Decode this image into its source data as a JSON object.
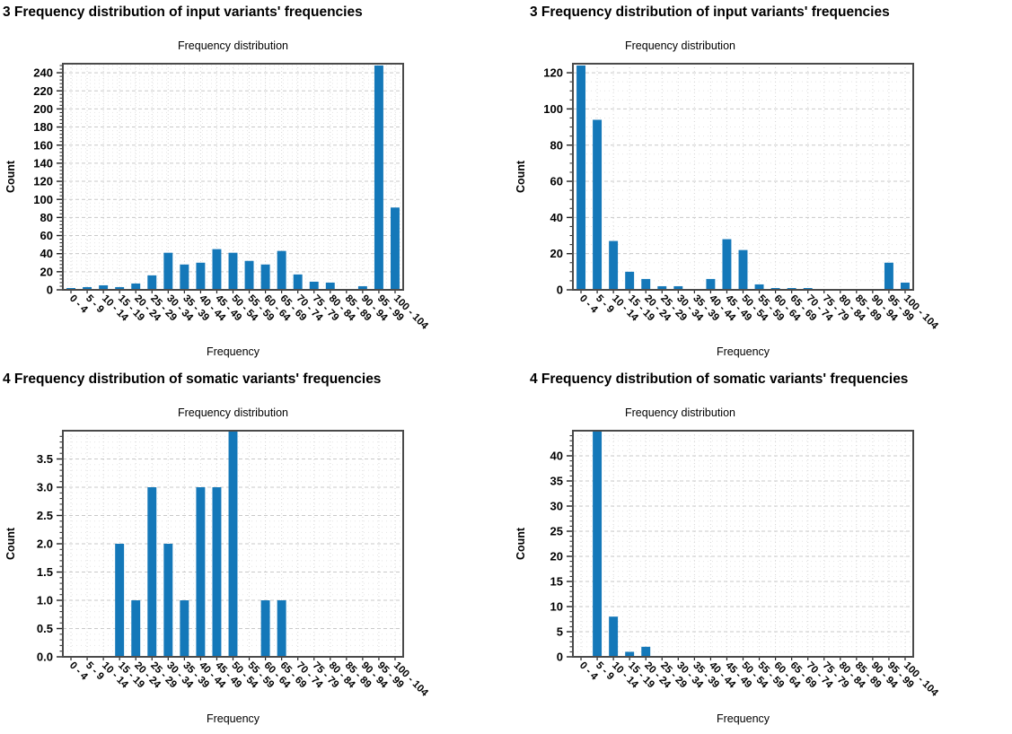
{
  "colors": {
    "bar": "#1478b9",
    "grid_major": "#c9c9c9",
    "grid_minor": "#e5e5e5",
    "grid_vertical": "#d6d6d6",
    "border": "#4a4a4a",
    "tick": "#222222",
    "text": "#000000"
  },
  "chart_data": [
    {
      "type": "bar",
      "heading": "3 Frequency distribution of input variants' frequencies",
      "title": "Frequency distribution",
      "xlabel": "Frequency",
      "ylabel": "Count",
      "legend": "none",
      "grid": "on",
      "categories": [
        "0 - 4",
        "5 - 9",
        "10 - 14",
        "15 - 19",
        "20 - 24",
        "25 - 29",
        "30 - 34",
        "35 - 39",
        "40 - 44",
        "45 - 49",
        "50 - 54",
        "55 - 59",
        "60 - 64",
        "65 - 69",
        "70 - 74",
        "75 - 79",
        "80 - 84",
        "85 - 89",
        "90 - 94",
        "95 - 99",
        "100 - 104"
      ],
      "values": [
        2,
        3,
        5,
        3,
        7,
        16,
        41,
        28,
        30,
        45,
        41,
        32,
        28,
        43,
        17,
        9,
        8,
        1,
        4,
        248,
        91
      ],
      "ylim": [
        0,
        250
      ],
      "y_major_step": 20,
      "y_minor_step": 4,
      "y_decimals": 0
    },
    {
      "type": "bar",
      "heading": "3 Frequency distribution of input variants' frequencies",
      "title": "Frequency distribution",
      "xlabel": "Frequency",
      "ylabel": "Count",
      "legend": "none",
      "grid": "on",
      "categories": [
        "0 - 4",
        "5 - 9",
        "10 - 14",
        "15 - 19",
        "20 - 24",
        "25 - 29",
        "30 - 34",
        "35 - 39",
        "40 - 44",
        "45 - 49",
        "50 - 54",
        "55 - 59",
        "60 - 64",
        "65 - 69",
        "70 - 74",
        "75 - 79",
        "80 - 84",
        "85 - 89",
        "90 - 94",
        "95 - 99",
        "100 - 104"
      ],
      "values": [
        124,
        94,
        27,
        10,
        6,
        2,
        2,
        0,
        6,
        28,
        22,
        3,
        1,
        1,
        1,
        0,
        0,
        0,
        0,
        15,
        4
      ],
      "ylim": [
        0,
        125
      ],
      "y_major_step": 20,
      "y_minor_step": 5,
      "y_decimals": 0
    },
    {
      "type": "bar",
      "heading": "4 Frequency distribution of somatic variants' frequencies",
      "title": "Frequency distribution",
      "xlabel": "Frequency",
      "ylabel": "Count",
      "legend": "none",
      "grid": "on",
      "categories": [
        "0 - 4",
        "5 - 9",
        "10 - 14",
        "15 - 19",
        "20 - 24",
        "25 - 29",
        "30 - 34",
        "35 - 39",
        "40 - 44",
        "45 - 49",
        "50 - 54",
        "55 - 59",
        "60 - 64",
        "65 - 69",
        "70 - 74",
        "75 - 79",
        "80 - 84",
        "85 - 89",
        "90 - 94",
        "95 - 99",
        "100 - 104"
      ],
      "values": [
        0,
        0,
        0,
        2,
        1,
        3,
        2,
        1,
        3,
        3,
        4,
        0,
        1,
        1,
        0,
        0,
        0,
        0,
        0,
        0,
        0
      ],
      "ylim": [
        0,
        4
      ],
      "y_major_step": 0.5,
      "y_minor_step": 0.1,
      "y_decimals": 1
    },
    {
      "type": "bar",
      "heading": "4 Frequency distribution of somatic variants' frequencies",
      "title": "Frequency distribution",
      "xlabel": "Frequency",
      "ylabel": "Count",
      "legend": "none",
      "grid": "on",
      "categories": [
        "0 - 4",
        "5 - 9",
        "10 - 14",
        "15 - 19",
        "20 - 24",
        "25 - 29",
        "30 - 34",
        "35 - 39",
        "40 - 44",
        "45 - 49",
        "50 - 54",
        "55 - 59",
        "60 - 64",
        "65 - 69",
        "70 - 74",
        "75 - 79",
        "80 - 84",
        "85 - 89",
        "90 - 94",
        "95 - 99",
        "100 - 104"
      ],
      "values": [
        0,
        45,
        8,
        1,
        2,
        0,
        0,
        0,
        0,
        0,
        0,
        0,
        0,
        0,
        0,
        0,
        0,
        0,
        0,
        0,
        0
      ],
      "ylim": [
        0,
        45
      ],
      "y_major_step": 5,
      "y_minor_step": 1,
      "y_decimals": 0
    }
  ]
}
